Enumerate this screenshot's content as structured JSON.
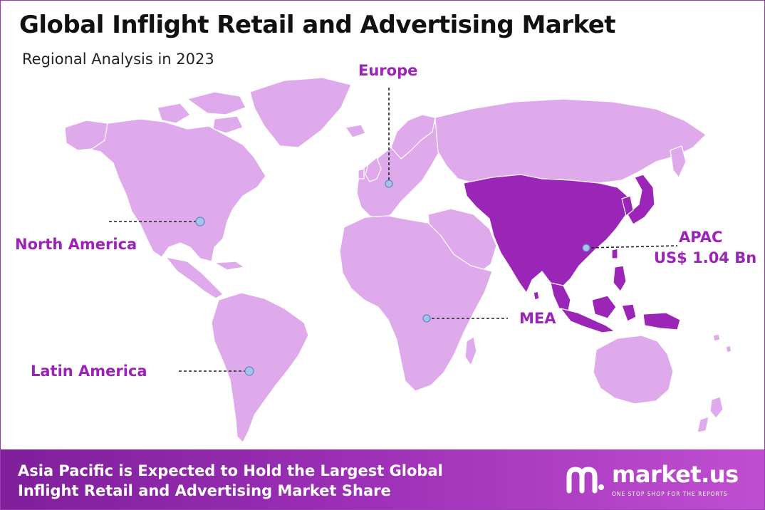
{
  "title": "Global Inflight Retail and Advertising Market",
  "subtitle": "Regional Analysis in 2023",
  "regions": {
    "europe": {
      "label": "Europe"
    },
    "north_america": {
      "label": "North America"
    },
    "latin_america": {
      "label": "Latin America"
    },
    "mea": {
      "label": "MEA"
    },
    "apac": {
      "label": "APAC",
      "value": "US$ 1.04 Bn",
      "highlighted": true
    }
  },
  "colors": {
    "land": "#deaaec",
    "highlight": "#9b25b6",
    "label": "#9b23b8",
    "marker": "#a7c3ec",
    "footer": "#9b2fb5"
  },
  "footer": {
    "line1": "Asia Pacific is Expected to Hold the Largest Global",
    "line2": "Inflight Retail and Advertising Market Share"
  },
  "brand": {
    "name": "market.us",
    "tagline": "ONE STOP SHOP FOR THE REPORTS"
  }
}
